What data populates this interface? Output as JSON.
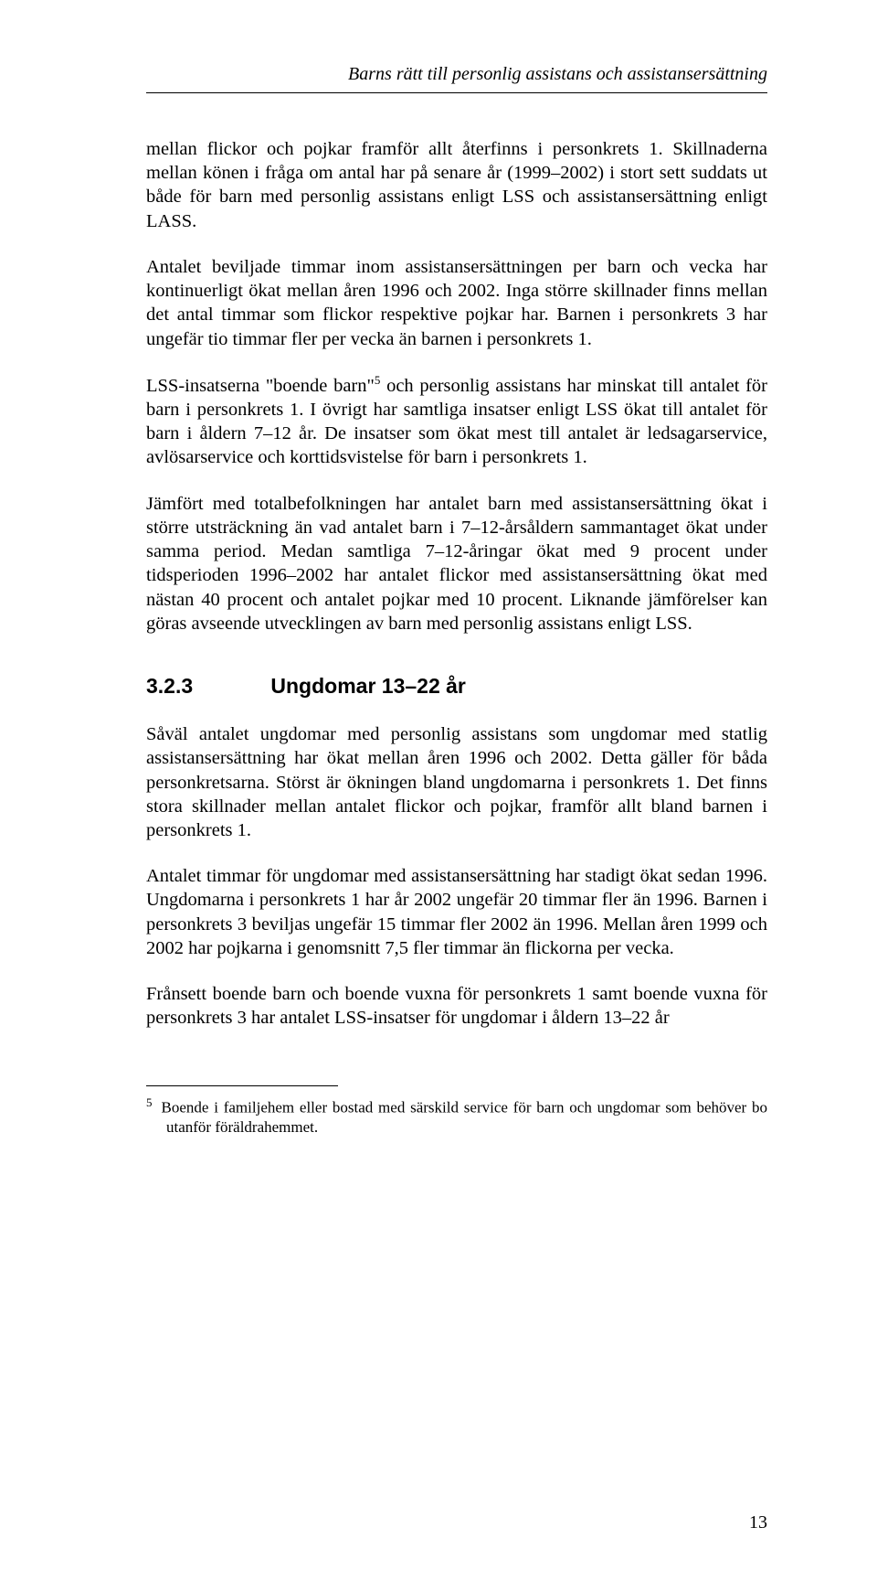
{
  "header": {
    "running_title": "Barns rätt till personlig assistans och assistansersättning"
  },
  "paragraphs": {
    "p1": "mellan flickor och pojkar framför allt återfinns i personkrets 1. Skillnaderna mellan könen i fråga om antal har på senare år (1999–2002) i stort sett suddats ut både för barn med personlig assistans enligt LSS och assistansersättning enligt LASS.",
    "p2": "Antalet beviljade timmar inom assistansersättningen per barn och vecka har kontinuerligt ökat mellan åren 1996 och 2002. Inga större skillnader finns mellan det antal timmar som flickor respektive pojkar har. Barnen i personkrets 3 har ungefär tio timmar fler per vecka än barnen i personkrets 1.",
    "p3a": "LSS-insatserna \"boende barn\"",
    "p3_fnref": "5",
    "p3b": " och personlig assistans har minskat till antalet för barn i personkrets 1. I övrigt har samtliga insatser enligt LSS ökat till antalet för barn i åldern 7–12 år. De insatser som ökat mest till antalet är ledsagarservice, avlösarservice och korttidsvistelse för barn i personkrets 1.",
    "p4": "Jämfört med totalbefolkningen har antalet barn med assistansersättning ökat i större utsträckning än vad antalet barn i 7–12-årsåldern sammantaget ökat under samma period. Medan samtliga 7–12-åringar ökat med 9 procent under tidsperioden 1996–2002 har antalet flickor med assistansersättning ökat med nästan 40 procent och antalet pojkar med 10 procent. Liknande jämförelser kan göras avseende utvecklingen av barn med personlig assistans enligt LSS.",
    "p5": "Såväl antalet ungdomar med personlig assistans som ungdomar med statlig assistansersättning har ökat mellan åren 1996 och 2002. Detta gäller för båda personkretsarna. Störst är ökningen bland ungdomarna i personkrets 1. Det finns stora skillnader mellan antalet flickor och pojkar, framför allt bland barnen i personkrets 1.",
    "p6": "Antalet timmar för ungdomar med assistansersättning har stadigt ökat sedan 1996. Ungdomarna i personkrets 1 har år 2002 ungefär 20 timmar fler än 1996. Barnen i personkrets 3 beviljas ungefär 15 timmar fler 2002 än 1996. Mellan åren 1999 och 2002 har pojkarna i genomsnitt 7,5 fler timmar än flickorna per vecka.",
    "p7": "Frånsett boende barn och boende vuxna för personkrets 1 samt boende vuxna för personkrets 3 har antalet LSS-insatser för ungdomar i åldern 13–22 år"
  },
  "section": {
    "number": "3.2.3",
    "title": "Ungdomar 13–22 år"
  },
  "footnote": {
    "marker": "5",
    "text": "Boende i familjehem eller bostad med särskild service för barn och ungdomar som behöver bo utanför föräldrahemmet."
  },
  "page_number": "13",
  "style": {
    "body_font_family": "Times New Roman",
    "heading_font_family": "Arial",
    "body_font_size_pt": 15,
    "heading_font_size_pt": 17,
    "text_color": "#000000",
    "background_color": "#ffffff",
    "rule_color": "#000000"
  }
}
